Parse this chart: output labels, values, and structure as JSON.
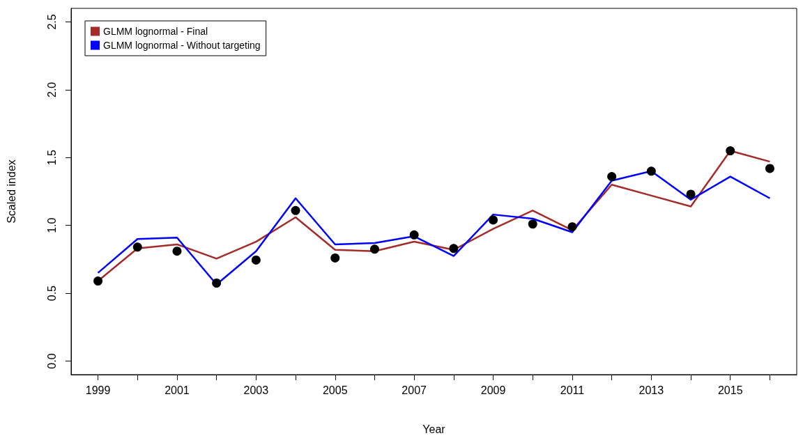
{
  "chart_data": {
    "type": "line",
    "xlabel": "Year",
    "ylabel": "Scaled index",
    "x": [
      1999,
      2000,
      2001,
      2002,
      2003,
      2004,
      2005,
      2006,
      2007,
      2008,
      2009,
      2010,
      2011,
      2012,
      2013,
      2014,
      2015,
      2016
    ],
    "series": [
      {
        "name": "GLMM lognormal - Final",
        "color": "#a52a2a",
        "values": [
          0.59,
          0.83,
          0.86,
          0.755,
          0.88,
          1.06,
          0.82,
          0.81,
          0.88,
          0.82,
          0.975,
          1.11,
          0.965,
          1.3,
          1.22,
          1.14,
          1.55,
          1.47
        ]
      },
      {
        "name": "GLMM lognormal - Without targeting",
        "color": "#0000ff",
        "values": [
          0.65,
          0.9,
          0.91,
          0.565,
          0.81,
          1.2,
          0.86,
          0.87,
          0.92,
          0.775,
          1.08,
          1.05,
          0.95,
          1.33,
          1.4,
          1.19,
          1.36,
          1.2
        ]
      },
      {
        "type": "scatter",
        "color": "#000000",
        "marker": "circle",
        "values": [
          0.59,
          0.84,
          0.81,
          0.575,
          0.745,
          1.11,
          0.76,
          0.825,
          0.93,
          0.83,
          1.04,
          1.01,
          0.99,
          1.36,
          1.4,
          1.23,
          1.55,
          1.42
        ]
      }
    ],
    "xlim": [
      1998.32,
      2016.68
    ],
    "xticks": [
      1999,
      {
        "value": 2000,
        "label": null
      },
      2001,
      {
        "value": 2002,
        "label": null
      },
      2003,
      {
        "value": 2004,
        "label": null
      },
      2005,
      {
        "value": 2006,
        "label": null
      },
      2007,
      {
        "value": 2008,
        "label": null
      },
      2009,
      {
        "value": 2010,
        "label": null
      },
      2011,
      {
        "value": 2012,
        "label": null
      },
      2013,
      {
        "value": 2014,
        "label": null
      },
      2015,
      {
        "value": 2016,
        "label": null
      }
    ],
    "ylim": [
      -0.1,
      2.6
    ],
    "yticks": [
      {
        "value": 0,
        "label": "0.0"
      },
      {
        "value": 0.5,
        "label": "0.5"
      },
      {
        "value": 1,
        "label": "1.0"
      },
      {
        "value": 1.5,
        "label": "1.5"
      },
      {
        "value": 2,
        "label": "2.0"
      },
      {
        "value": 2.5,
        "label": "2.5"
      }
    ],
    "grid": false,
    "legend": "top left",
    "marker": "none",
    "line_style": "solid"
  }
}
